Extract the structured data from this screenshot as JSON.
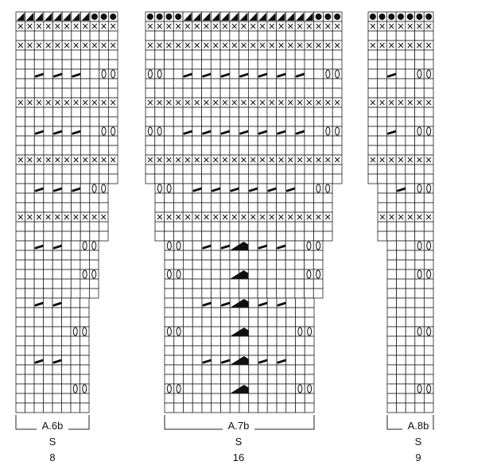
{
  "charts": [
    {
      "name": "A.6b",
      "size": "S",
      "stitches": 8
    },
    {
      "name": "A.7b",
      "size": "S",
      "stitches": 16
    },
    {
      "name": "A.8b",
      "size": "S",
      "stitches": 9
    }
  ]
}
